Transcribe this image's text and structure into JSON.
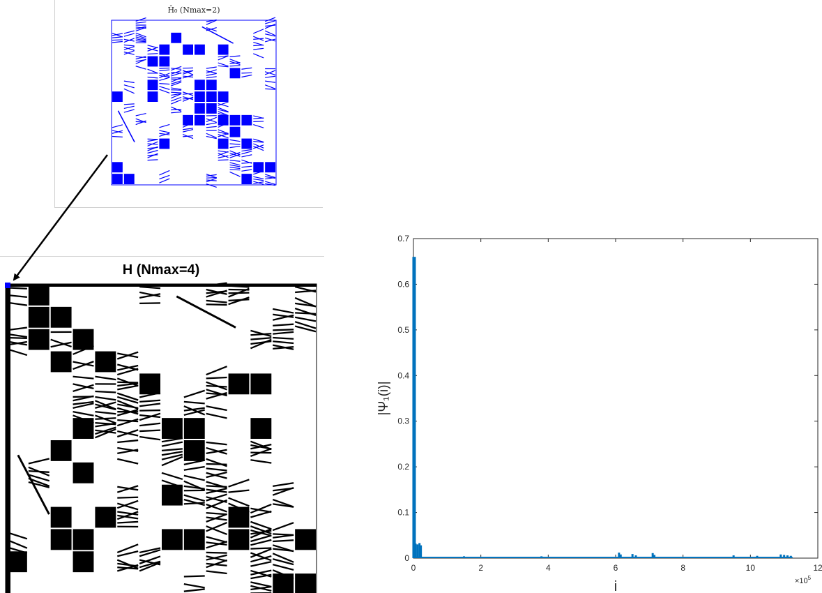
{
  "inset": {
    "title": "Ĥ₀ (Nmax=2)",
    "marker_color": "#0000ff"
  },
  "matrix": {
    "title": "H (Nmax=4)",
    "marker_color": "#000000",
    "highlight_color": "#0000ff"
  },
  "chart_data": {
    "type": "bar",
    "xlabel": "i",
    "ylabel": "|Ψ₁(i)|",
    "x_multiplier_label": "×10",
    "x_multiplier_exp": "5",
    "xlim": [
      0,
      12
    ],
    "ylim": [
      0,
      0.7
    ],
    "xticks": [
      0,
      2,
      4,
      6,
      8,
      10,
      12
    ],
    "yticks": [
      0,
      0.1,
      0.2,
      0.3,
      0.4,
      0.5,
      0.6,
      0.7
    ],
    "color": "#0072bd",
    "x": [
      0.02,
      0.06,
      0.12,
      0.18,
      0.22,
      1.5,
      3.8,
      6.1,
      6.15,
      6.5,
      6.6,
      7.1,
      7.15,
      9.5,
      10.2,
      10.9,
      11.0,
      11.1,
      11.2
    ],
    "values": [
      0.66,
      0.032,
      0.03,
      0.033,
      0.028,
      0.004,
      0.004,
      0.012,
      0.008,
      0.009,
      0.006,
      0.011,
      0.007,
      0.006,
      0.005,
      0.008,
      0.007,
      0.006,
      0.005
    ],
    "baseline": 0.003,
    "baseline_xmax": 11.25
  }
}
